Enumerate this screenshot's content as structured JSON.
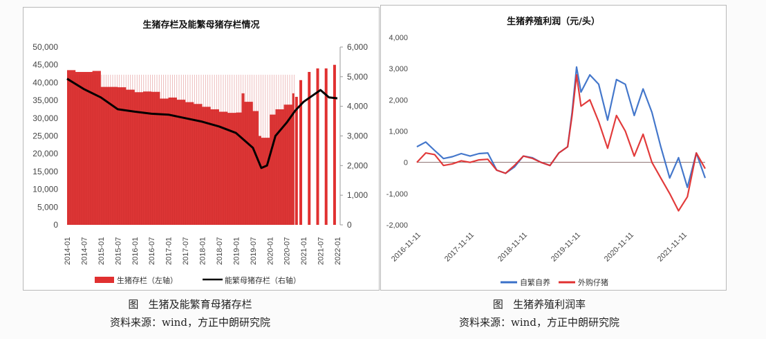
{
  "left_panel": {
    "title": "生猪存栏及能繁母猪存栏情况",
    "caption_title": "图   生猪及能繁育母猪存栏",
    "caption_source": "资料来源：wind，方正中朗研究院"
  },
  "right_panel": {
    "title": "生猪养殖利润（元/头）",
    "caption_title": "图   生猪养殖利润率",
    "caption_source": "资料来源：wind，方正中朗研究院"
  },
  "chart_data": [
    {
      "type": "bar+line",
      "title": "生猪存栏及能繁母猪存栏情况",
      "xlabel": "",
      "ylabel_left": "生猪存栏（左轴）",
      "ylabel_right": "能繁母猪存栏（右轴）",
      "ylim_left": [
        0,
        50000
      ],
      "ylim_right": [
        0,
        6000
      ],
      "yticks_left": [
        "0",
        "5,000",
        "10,000",
        "15,000",
        "20,000",
        "25,000",
        "30,000",
        "35,000",
        "40,000",
        "45,000",
        "50,000"
      ],
      "yticks_right": [
        "0",
        "1,000",
        "2,000",
        "3,000",
        "4,000",
        "5,000",
        "6,000"
      ],
      "xticks": [
        "2014-01",
        "2014-07",
        "2015-01",
        "2015-07",
        "2016-01",
        "2016-07",
        "2017-01",
        "2017-07",
        "2018-01",
        "2018-07",
        "2019-01",
        "2019-07",
        "2020-01",
        "2020-07",
        "2021-01",
        "2021-07",
        "2022-01"
      ],
      "legend": [
        "生猪存栏（左轴）",
        "能繁母猪存栏（右轴）"
      ],
      "legend_position": "bottom",
      "grid": false,
      "series": [
        {
          "name": "生猪存栏（左轴）",
          "kind": "bar",
          "color": "#e03030",
          "x": [
            "2014-01",
            "2014-04",
            "2014-07",
            "2014-10",
            "2015-01",
            "2015-04",
            "2015-07",
            "2015-10",
            "2016-01",
            "2016-04",
            "2016-07",
            "2016-10",
            "2017-01",
            "2017-04",
            "2017-07",
            "2017-10",
            "2018-01",
            "2018-04",
            "2018-07",
            "2018-10",
            "2019-01",
            "2019-03",
            "2019-04",
            "2019-07",
            "2019-09",
            "2019-10",
            "2020-01",
            "2020-03",
            "2020-06",
            "2020-09",
            "2020-12",
            "2021-03",
            "2021-06",
            "2021-09",
            "2021-12"
          ],
          "values": [
            43500,
            43000,
            43000,
            43300,
            38800,
            38800,
            38700,
            38000,
            37300,
            37500,
            37400,
            35500,
            35800,
            35200,
            34500,
            34000,
            33200,
            32500,
            31800,
            31500,
            31600,
            37000,
            34600,
            32000,
            25000,
            24500,
            31000,
            32500,
            33800,
            37000,
            40700,
            43000,
            44000,
            44000,
            45000
          ]
        },
        {
          "name": "能繁母猪存栏（右轴）",
          "kind": "line",
          "color": "#000000",
          "x": [
            "2014-01",
            "2014-07",
            "2015-01",
            "2015-07",
            "2016-01",
            "2016-07",
            "2017-01",
            "2017-07",
            "2018-01",
            "2018-07",
            "2019-01",
            "2019-07",
            "2019-10",
            "2019-12",
            "2020-03",
            "2020-07",
            "2020-10",
            "2021-01",
            "2021-04",
            "2021-07",
            "2021-10",
            "2022-01"
          ],
          "values": [
            4930,
            4580,
            4300,
            3900,
            3820,
            3750,
            3720,
            3600,
            3480,
            3320,
            3100,
            2600,
            1920,
            2000,
            3000,
            3450,
            3850,
            4150,
            4350,
            4550,
            4300,
            4270
          ]
        }
      ]
    },
    {
      "type": "line",
      "title": "生猪养殖利润（元/头）",
      "xlabel": "",
      "ylabel": "元/头",
      "ylim": [
        -2000,
        4000
      ],
      "yticks": [
        "-2,000",
        "-1,000",
        "0",
        "1,000",
        "2,000",
        "3,000",
        "4,000"
      ],
      "xticks": [
        "2016-11-11",
        "2017-11-11",
        "2018-11-11",
        "2019-11-11",
        "2020-11-11",
        "2021-11-11"
      ],
      "legend": [
        "自繁自养",
        "外购仔猪"
      ],
      "legend_position": "bottom",
      "grid": false,
      "series": [
        {
          "name": "自繁自养",
          "color": "#3a70c8",
          "x": [
            "2016-11",
            "2017-01",
            "2017-03",
            "2017-05",
            "2017-07",
            "2017-09",
            "2017-11",
            "2018-01",
            "2018-03",
            "2018-05",
            "2018-07",
            "2018-09",
            "2018-11",
            "2019-01",
            "2019-03",
            "2019-05",
            "2019-07",
            "2019-09",
            "2019-10",
            "2019-11",
            "2019-12",
            "2020-02",
            "2020-04",
            "2020-06",
            "2020-08",
            "2020-10",
            "2020-12",
            "2021-02",
            "2021-04",
            "2021-06",
            "2021-08",
            "2021-10",
            "2021-12",
            "2022-02",
            "2022-04"
          ],
          "values": [
            500,
            650,
            380,
            120,
            180,
            280,
            200,
            280,
            300,
            -250,
            -350,
            -150,
            200,
            150,
            0,
            -100,
            300,
            500,
            1600,
            3050,
            2250,
            2800,
            2500,
            1350,
            2650,
            2500,
            1500,
            2350,
            1600,
            500,
            -500,
            150,
            -800,
            300,
            -500
          ]
        },
        {
          "name": "外购仔猪",
          "color": "#e03030",
          "x": [
            "2016-11",
            "2017-01",
            "2017-03",
            "2017-05",
            "2017-07",
            "2017-09",
            "2017-11",
            "2018-01",
            "2018-03",
            "2018-05",
            "2018-07",
            "2018-09",
            "2018-11",
            "2019-01",
            "2019-03",
            "2019-05",
            "2019-07",
            "2019-09",
            "2019-10",
            "2019-11",
            "2019-12",
            "2020-02",
            "2020-04",
            "2020-06",
            "2020-08",
            "2020-10",
            "2020-12",
            "2021-02",
            "2021-04",
            "2021-06",
            "2021-08",
            "2021-10",
            "2021-12",
            "2022-02",
            "2022-04"
          ],
          "values": [
            0,
            300,
            250,
            -100,
            -50,
            50,
            0,
            80,
            100,
            -250,
            -350,
            -100,
            200,
            130,
            0,
            -100,
            300,
            500,
            1500,
            2800,
            1800,
            2000,
            1300,
            450,
            1500,
            1000,
            200,
            900,
            0,
            -500,
            -1000,
            -1550,
            -1100,
            300,
            -200
          ]
        }
      ]
    }
  ]
}
